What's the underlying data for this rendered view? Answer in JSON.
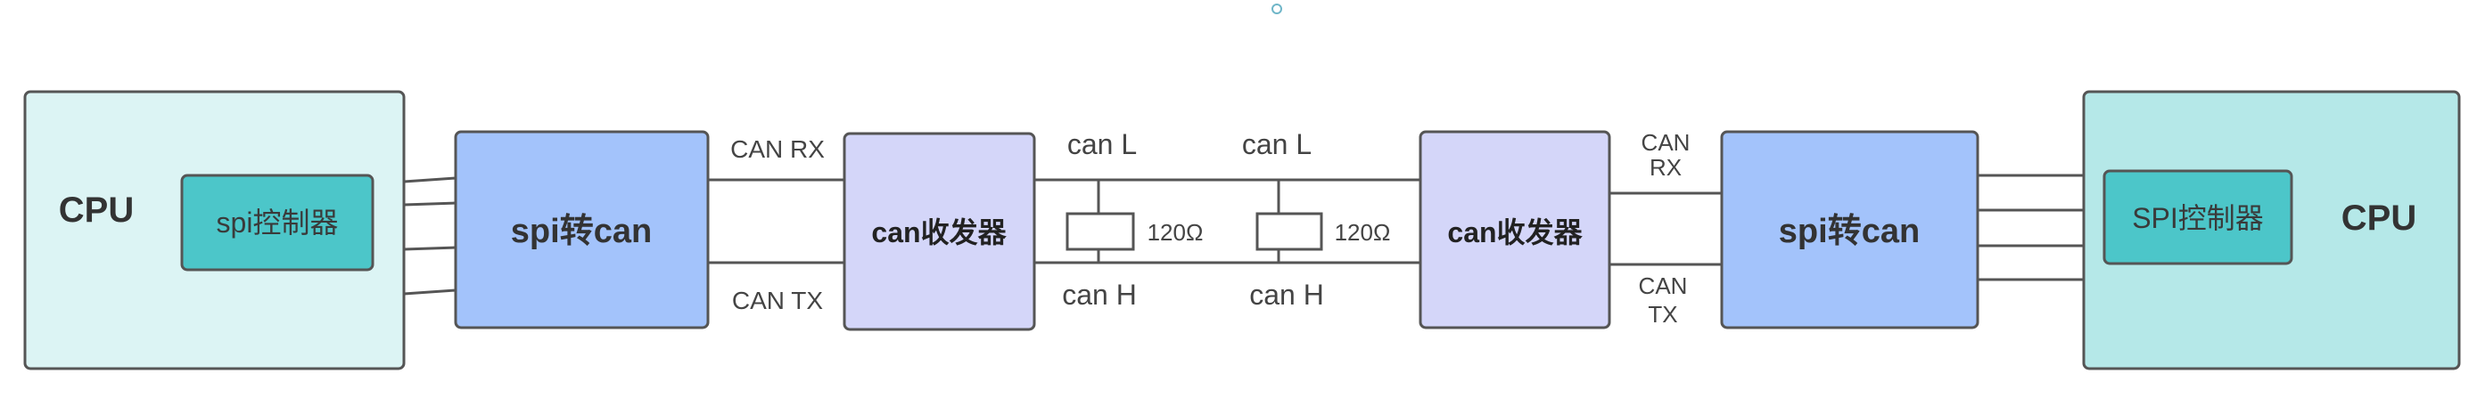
{
  "left_cpu": {
    "title": "CPU",
    "controller": "spi控制器"
  },
  "left_bridge": {
    "label": "spi转can"
  },
  "left_link": {
    "rx": "CAN RX",
    "tx": "CAN TX"
  },
  "left_transceiver": {
    "label": "can收发器"
  },
  "bus": {
    "line_l_left": "can L",
    "line_l_right": "can L",
    "line_h_left": "can H",
    "line_h_right": "can H",
    "resistor_left": "120Ω",
    "resistor_right": "120Ω"
  },
  "right_transceiver": {
    "label": "can收发器"
  },
  "right_link": {
    "rx_1": "CAN",
    "rx_2": "RX",
    "tx_1": "CAN",
    "tx_2": "TX"
  },
  "right_bridge": {
    "label": "spi转can"
  },
  "right_cpu": {
    "title": "CPU",
    "controller": "SPI控制器"
  },
  "colors": {
    "cpu_left_fill": "#dcf4f4",
    "cpu_right_fill": "#b5e8e8",
    "controller_fill": "#4cc6c9",
    "bridge_fill": "#a3c3fb",
    "transceiver_fill": "#d4d6f9",
    "line": "#555555"
  }
}
